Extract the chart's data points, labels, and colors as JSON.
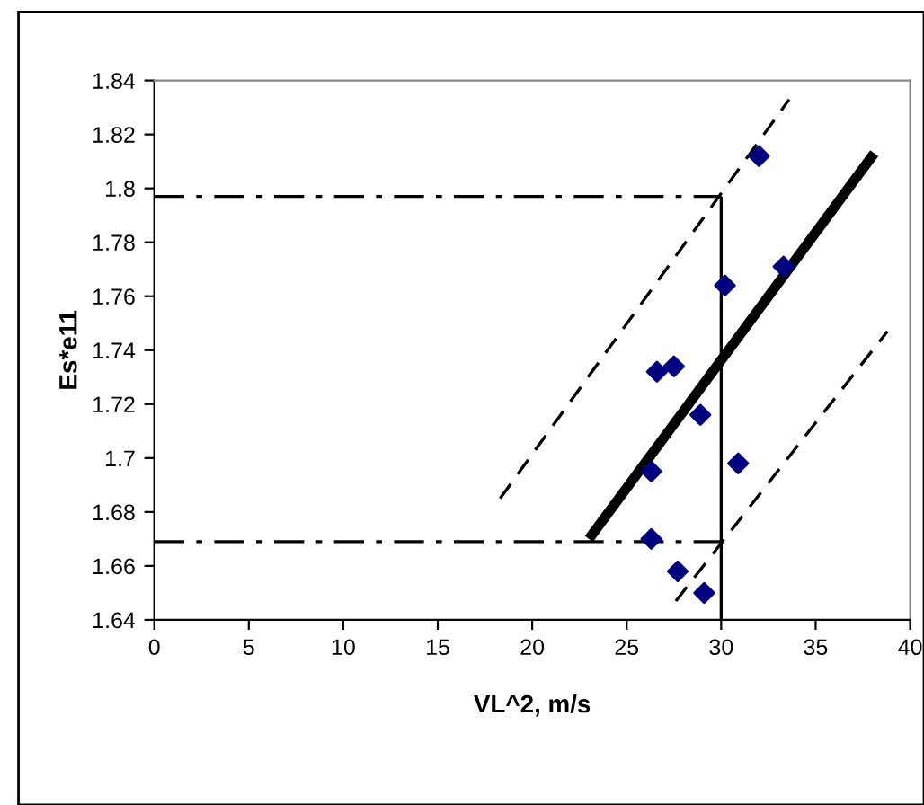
{
  "chart_data": {
    "type": "scatter",
    "xlabel": "VL^2, m/s",
    "ylabel": "Es*e11",
    "xlim": [
      0,
      40
    ],
    "xticks": [
      0,
      5,
      10,
      15,
      20,
      25,
      30,
      35,
      40
    ],
    "ylim": [
      1.64,
      1.84
    ],
    "yticks": [
      1.64,
      1.66,
      1.68,
      1.7,
      1.72,
      1.74,
      1.76,
      1.78,
      1.8,
      1.82,
      1.84
    ],
    "grid": false,
    "legend": false,
    "series": [
      {
        "color": "#000080",
        "marker": "diamond",
        "x": [
          26.6,
          27.5,
          28.9,
          26.3,
          26.3,
          27.7,
          29.1,
          30.9,
          30.2,
          32.0,
          33.3
        ],
        "values": [
          1.732,
          1.734,
          1.716,
          1.695,
          1.67,
          1.658,
          1.65,
          1.698,
          1.764,
          1.812,
          1.771
        ]
      },
      {
        "type": "line",
        "color": "#000000",
        "line_style": "solid",
        "marker": "none",
        "x": [
          23.0,
          38.1
        ],
        "values": [
          1.67,
          1.813
        ]
      },
      {
        "type": "line",
        "color": "#000000",
        "line_style": "dashed",
        "marker": "none",
        "x": [
          18.3,
          33.6
        ],
        "values": [
          1.685,
          1.833
        ]
      },
      {
        "type": "line",
        "color": "#000000",
        "line_style": "dashed",
        "marker": "none",
        "x": [
          27.6,
          38.8
        ],
        "values": [
          1.647,
          1.747
        ]
      },
      {
        "type": "line",
        "color": "#000000",
        "line_style": "dashdot",
        "marker": "none",
        "x": [
          0,
          30
        ],
        "values": [
          1.797,
          1.797
        ]
      },
      {
        "type": "line",
        "color": "#000000",
        "line_style": "dashdot",
        "marker": "none",
        "x": [
          0,
          30
        ],
        "values": [
          1.669,
          1.669
        ]
      },
      {
        "type": "line",
        "color": "#000000",
        "line_style": "solid",
        "marker": "none",
        "x": [
          30,
          30
        ],
        "values": [
          1.64,
          1.797
        ]
      }
    ]
  }
}
